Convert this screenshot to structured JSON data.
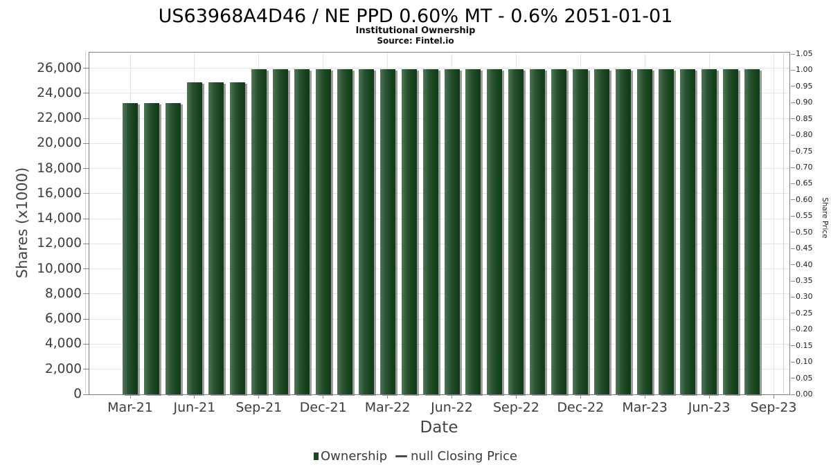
{
  "chart_data": {
    "type": "bar",
    "title": "US63968A4D46 / NE PPD 0.60% MT - 0.6% 2051-01-01",
    "subtitle": "Institutional Ownership",
    "source": "Source: Fintel.io",
    "xlabel": "Date",
    "ylabel_left": "Shares (x1000)",
    "ylabel_right": "Share Price",
    "categories": [
      "Mar-21",
      "Apr-21",
      "May-21",
      "Jun-21",
      "Jul-21",
      "Aug-21",
      "Sep-21",
      "Oct-21",
      "Nov-21",
      "Dec-21",
      "Jan-22",
      "Feb-22",
      "Mar-22",
      "Apr-22",
      "May-22",
      "Jun-22",
      "Jul-22",
      "Aug-22",
      "Sep-22",
      "Oct-22",
      "Nov-22",
      "Dec-22",
      "Jan-23",
      "Feb-23",
      "Mar-23",
      "Apr-23",
      "May-23",
      "Jun-23",
      "Jul-23",
      "Aug-23"
    ],
    "series": [
      {
        "name": "Ownership",
        "values": [
          23200,
          23200,
          23200,
          24900,
          24900,
          24900,
          25900,
          25900,
          25900,
          25900,
          25900,
          25900,
          25900,
          25900,
          25900,
          25900,
          25900,
          25900,
          25900,
          25900,
          25900,
          25900,
          25900,
          25900,
          25900,
          25900,
          25900,
          25900,
          25900,
          25900
        ]
      }
    ],
    "ylim_left": [
      0,
      27300
    ],
    "yticks_left": [
      [
        "0",
        0
      ],
      [
        "2,000",
        2000
      ],
      [
        "4,000",
        4000
      ],
      [
        "6,000",
        6000
      ],
      [
        "8,000",
        8000
      ],
      [
        "10,000",
        10000
      ],
      [
        "12,000",
        12000
      ],
      [
        "14,000",
        14000
      ],
      [
        "16,000",
        16000
      ],
      [
        "18,000",
        18000
      ],
      [
        "20,000",
        20000
      ],
      [
        "22,000",
        22000
      ],
      [
        "24,000",
        24000
      ],
      [
        "26,000",
        26000
      ]
    ],
    "ylim_right": [
      0,
      1.05
    ],
    "yticks_right": [
      [
        "0.00",
        0
      ],
      [
        "0.05",
        0.05
      ],
      [
        "0.10",
        0.1
      ],
      [
        "0.15",
        0.15
      ],
      [
        "0.20",
        0.2
      ],
      [
        "0.25",
        0.25
      ],
      [
        "0.30",
        0.3
      ],
      [
        "0.35",
        0.35
      ],
      [
        "0.40",
        0.4
      ],
      [
        "0.45",
        0.45
      ],
      [
        "0.50",
        0.5
      ],
      [
        "0.55",
        0.55
      ],
      [
        "0.60",
        0.6
      ],
      [
        "0.65",
        0.65
      ],
      [
        "0.70",
        0.7
      ],
      [
        "0.75",
        0.75
      ],
      [
        "0.80",
        0.8
      ],
      [
        "0.85",
        0.85
      ],
      [
        "0.90",
        0.9
      ],
      [
        "0.95",
        0.95
      ],
      [
        "1.00",
        1.0
      ],
      [
        "1.05",
        1.05
      ]
    ],
    "xticks": [
      "Mar-21",
      "Jun-21",
      "Sep-21",
      "Dec-21",
      "Mar-22",
      "Jun-22",
      "Sep-22",
      "Dec-22",
      "Mar-23",
      "Jun-23",
      "Sep-23"
    ],
    "grid": true,
    "legend_position": "bottom",
    "legend": [
      {
        "label": "Ownership",
        "marker": "bar",
        "color": "#1d4424"
      },
      {
        "label": "null Closing Price",
        "marker": "line",
        "color": "#4a4a4a"
      }
    ],
    "bar_color_gradient": [
      "#527457",
      "#123a19"
    ],
    "bar_shadow_color": "#828282",
    "gridline_color": "#e4e4e4"
  }
}
